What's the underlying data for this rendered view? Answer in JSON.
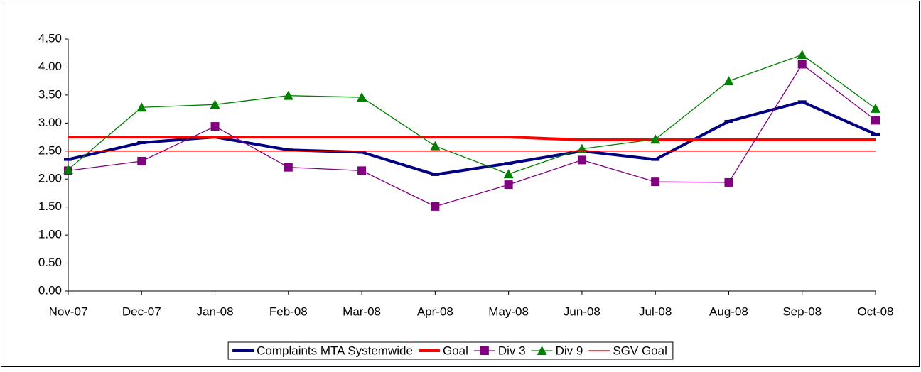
{
  "chart_data": {
    "type": "line",
    "categories": [
      "Nov-07",
      "Dec-07",
      "Jan-08",
      "Feb-08",
      "Mar-08",
      "Apr-08",
      "May-08",
      "Jun-08",
      "Jul-08",
      "Aug-08",
      "Sep-08",
      "Oct-08"
    ],
    "series": [
      {
        "name": "Complaints MTA Systemwide",
        "color": "#000080",
        "width": 4,
        "marker": "dash",
        "values": [
          2.35,
          2.65,
          2.75,
          2.52,
          2.48,
          2.08,
          2.28,
          2.5,
          2.35,
          3.03,
          3.38,
          2.8
        ]
      },
      {
        "name": "Goal",
        "color": "#ff0000",
        "width": 4,
        "marker": "none",
        "values": [
          2.75,
          2.75,
          2.75,
          2.75,
          2.75,
          2.75,
          2.75,
          2.7,
          2.7,
          2.7,
          2.7,
          2.7
        ]
      },
      {
        "name": "Div 3",
        "color": "#800080",
        "width": 1.3,
        "marker": "square",
        "values": [
          2.15,
          2.32,
          2.94,
          2.21,
          2.15,
          1.51,
          1.9,
          2.34,
          1.95,
          1.94,
          4.05,
          3.05
        ]
      },
      {
        "name": "Div 9",
        "color": "#008000",
        "width": 1.3,
        "marker": "triangle",
        "values": [
          2.17,
          3.28,
          3.33,
          3.49,
          3.46,
          2.59,
          2.09,
          2.54,
          2.71,
          3.75,
          4.22,
          3.26
        ]
      },
      {
        "name": "SGV Goal",
        "color": "#ff0000",
        "width": 1.5,
        "marker": "none",
        "values": [
          2.5,
          2.5,
          2.5,
          2.5,
          2.5,
          2.5,
          2.5,
          2.5,
          2.5,
          2.5,
          2.5,
          2.5
        ]
      }
    ],
    "ylim": [
      0,
      4.5
    ],
    "yticks": [
      {
        "value": 0,
        "label": "0.00"
      },
      {
        "value": 0.5,
        "label": "0.50"
      },
      {
        "value": 1,
        "label": "1.00"
      },
      {
        "value": 1.5,
        "label": "1.50"
      },
      {
        "value": 2,
        "label": "2.00"
      },
      {
        "value": 2.5,
        "label": "2.50"
      },
      {
        "value": 3,
        "label": "3.00"
      },
      {
        "value": 3.5,
        "label": "3.50"
      },
      {
        "value": 4,
        "label": "4.00"
      },
      {
        "value": 4.5,
        "label": "4.50"
      }
    ],
    "grid": false,
    "legend": "bottom"
  }
}
